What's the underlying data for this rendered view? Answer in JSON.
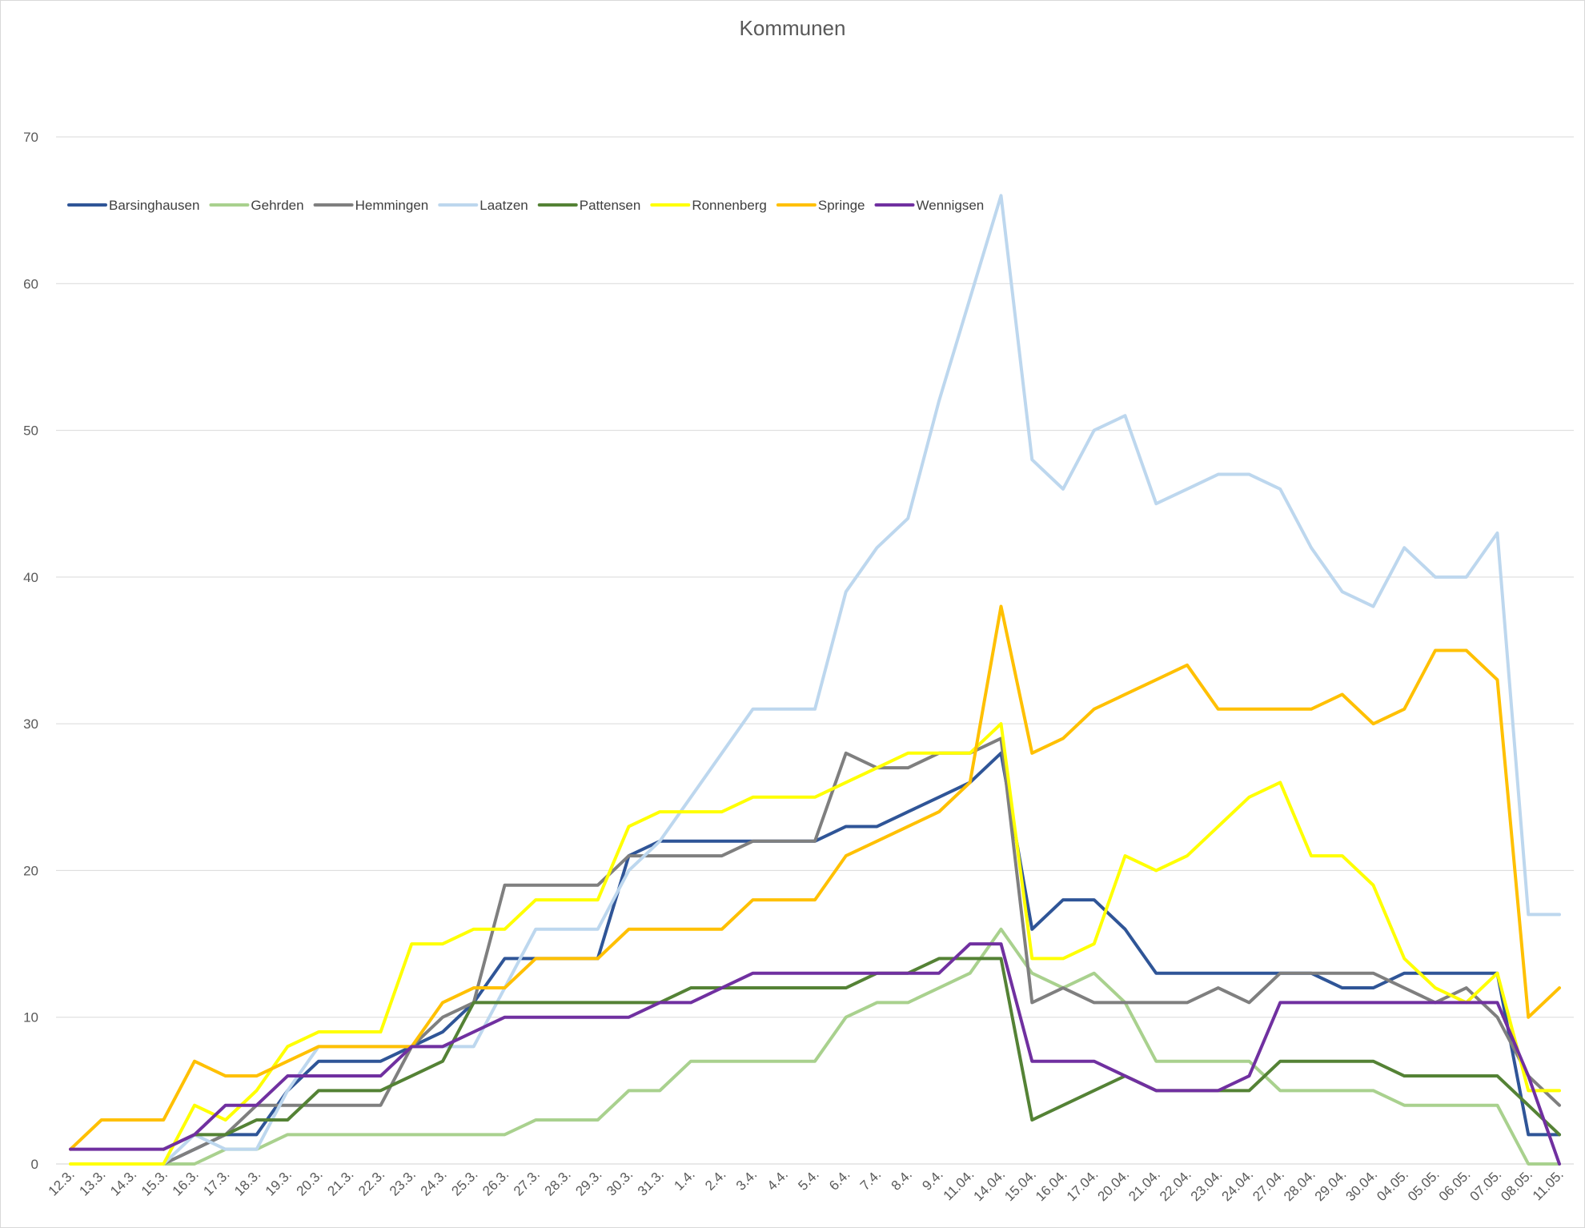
{
  "chart_data": {
    "type": "line",
    "title": "Kommunen",
    "xlabel": "",
    "ylabel": "",
    "ylim": [
      0,
      70
    ],
    "y_ticks": [
      0,
      10,
      20,
      30,
      40,
      50,
      60,
      70
    ],
    "grid": true,
    "legend_position": "top-left",
    "categories": [
      "12.3.",
      "13.3.",
      "14.3.",
      "15.3.",
      "16.3.",
      "17.3.",
      "18.3.",
      "19.3.",
      "20.3.",
      "21.3.",
      "22.3.",
      "23.3.",
      "24.3.",
      "25.3.",
      "26.3.",
      "27.3.",
      "28.3.",
      "29.3.",
      "30.3.",
      "31.3.",
      "1.4.",
      "2.4.",
      "3.4.",
      "4.4.",
      "5.4.",
      "6.4.",
      "7.4.",
      "8.4.",
      "9.4.",
      "11.04.",
      "14.04.",
      "15.04.",
      "16.04.",
      "17.04.",
      "20.04.",
      "21.04.",
      "22.04.",
      "23.04.",
      "24.04.",
      "27.04.",
      "28.04.",
      "29.04.",
      "30.04.",
      "04.05.",
      "05.05.",
      "06.05.",
      "07.05.",
      "08.05.",
      "11.05."
    ],
    "series": [
      {
        "name": "Barsinghausen",
        "color": "#2f5597",
        "values": [
          null,
          null,
          null,
          0,
          1,
          2,
          2,
          5,
          7,
          7,
          7,
          8,
          9,
          11,
          14,
          14,
          14,
          14,
          21,
          22,
          22,
          22,
          22,
          22,
          22,
          23,
          23,
          24,
          25,
          26,
          28,
          16,
          18,
          18,
          16,
          13,
          13,
          13,
          13,
          13,
          13,
          12,
          12,
          13,
          13,
          13,
          13,
          2,
          2
        ]
      },
      {
        "name": "Gehrden",
        "color": "#a9d18e",
        "values": [
          null,
          null,
          null,
          0,
          0,
          1,
          1,
          2,
          2,
          2,
          2,
          2,
          2,
          2,
          2,
          3,
          3,
          3,
          5,
          5,
          7,
          7,
          7,
          7,
          7,
          10,
          11,
          11,
          12,
          13,
          16,
          13,
          12,
          13,
          11,
          7,
          7,
          7,
          7,
          5,
          5,
          5,
          5,
          4,
          4,
          4,
          4,
          0,
          0
        ]
      },
      {
        "name": "Hemmingen",
        "color": "#7f7f7f",
        "values": [
          null,
          null,
          null,
          0,
          1,
          2,
          4,
          4,
          4,
          4,
          4,
          8,
          10,
          11,
          19,
          19,
          19,
          19,
          21,
          21,
          21,
          21,
          22,
          22,
          22,
          28,
          27,
          27,
          28,
          28,
          29,
          11,
          12,
          11,
          11,
          11,
          11,
          12,
          11,
          13,
          13,
          13,
          13,
          12,
          11,
          12,
          10,
          6,
          4
        ]
      },
      {
        "name": "Laatzen",
        "color": "#bdd7ee",
        "values": [
          null,
          null,
          null,
          0,
          2,
          1,
          1,
          5,
          8,
          8,
          8,
          8,
          8,
          8,
          12,
          16,
          16,
          16,
          20,
          22,
          25,
          28,
          31,
          31,
          31,
          39,
          42,
          44,
          52,
          59,
          66,
          48,
          46,
          50,
          51,
          45,
          46,
          47,
          47,
          46,
          42,
          39,
          38,
          42,
          40,
          40,
          43,
          17,
          17
        ]
      },
      {
        "name": "Pattensen",
        "color": "#548235",
        "values": [
          null,
          null,
          null,
          1,
          2,
          2,
          3,
          3,
          5,
          5,
          5,
          6,
          7,
          11,
          11,
          11,
          11,
          11,
          11,
          11,
          12,
          12,
          12,
          12,
          12,
          12,
          13,
          13,
          14,
          14,
          14,
          3,
          4,
          5,
          6,
          5,
          5,
          5,
          5,
          7,
          7,
          7,
          7,
          6,
          6,
          6,
          6,
          4,
          2
        ]
      },
      {
        "name": "Ronnenberg",
        "color": "#ffff00",
        "values": [
          0,
          0,
          0,
          0,
          4,
          3,
          5,
          8,
          9,
          9,
          9,
          15,
          15,
          16,
          16,
          18,
          18,
          18,
          23,
          24,
          24,
          24,
          25,
          25,
          25,
          26,
          27,
          28,
          28,
          28,
          30,
          14,
          14,
          15,
          21,
          20,
          21,
          23,
          25,
          26,
          21,
          21,
          19,
          14,
          12,
          11,
          13,
          5,
          5
        ]
      },
      {
        "name": "Springe",
        "color": "#ffc000",
        "values": [
          1,
          3,
          3,
          3,
          7,
          6,
          6,
          7,
          8,
          8,
          8,
          8,
          11,
          12,
          12,
          14,
          14,
          14,
          16,
          16,
          16,
          16,
          18,
          18,
          18,
          21,
          22,
          23,
          24,
          26,
          38,
          28,
          29,
          31,
          32,
          33,
          34,
          31,
          31,
          31,
          31,
          32,
          30,
          31,
          35,
          35,
          33,
          10,
          12
        ]
      },
      {
        "name": "Wennigsen",
        "color": "#7030a0",
        "values": [
          1,
          1,
          1,
          1,
          2,
          4,
          4,
          6,
          6,
          6,
          6,
          8,
          8,
          9,
          10,
          10,
          10,
          10,
          10,
          11,
          11,
          12,
          13,
          13,
          13,
          13,
          13,
          13,
          13,
          15,
          15,
          7,
          7,
          7,
          6,
          5,
          5,
          5,
          6,
          11,
          11,
          11,
          11,
          11,
          11,
          11,
          11,
          6,
          0
        ]
      }
    ]
  }
}
